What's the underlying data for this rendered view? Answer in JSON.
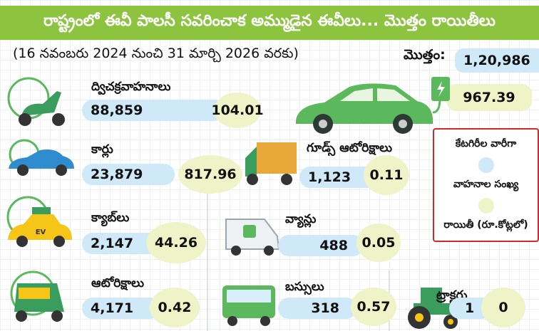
{
  "title": "రాష్ట్రంలో ఈవీ పాలసీ సవరించాక అమ్ముడైన ఈవీలు... మొత్తం రాయితీలు",
  "period": "(16 నవంబరు 2024 నుంచి 31 మార్చి 2026 వరకు)",
  "total": {
    "label": "మొత్తం:",
    "vehicles": "1,20,986",
    "subsidy": "967.39"
  },
  "legend": {
    "heading": "కేటగిరీల వారీగా",
    "vehicles_label": "వాహనాల సంఖ్య",
    "subsidy_label": "రాయితీ (రూ.కోట్లలో)",
    "vehicles_color": "#cfe9f8",
    "subsidy_color": "#eef3c8"
  },
  "categories": [
    {
      "name": "ద్విచక్రవాహనాలు",
      "vehicles": "88,859",
      "subsidy": "104.01",
      "icon": "scooter-icon"
    },
    {
      "name": "కార్లు",
      "vehicles": "23,879",
      "subsidy": "817.96",
      "icon": "car-icon"
    },
    {
      "name": "గూడ్స్ ఆటోరిక్షాలు",
      "vehicles": "1,123",
      "subsidy": "0.11",
      "icon": "goods-auto-icon"
    },
    {
      "name": "క్యాబ్‌లు",
      "vehicles": "2,147",
      "subsidy": "44.26",
      "icon": "cab-icon",
      "badge": "EV"
    },
    {
      "name": "వ్యాన్లు",
      "vehicles": "488",
      "subsidy": "0.05",
      "icon": "van-icon"
    },
    {
      "name": "ఆటోరిక్షాలు",
      "vehicles": "4,171",
      "subsidy": "0.42",
      "icon": "auto-rickshaw-icon"
    },
    {
      "name": "బస్సులు",
      "vehicles": "318",
      "subsidy": "0.57",
      "icon": "bus-icon"
    },
    {
      "name": "ట్రాక్టర్లు",
      "vehicles": "1",
      "subsidy": "0",
      "icon": "tractor-icon"
    }
  ],
  "colors": {
    "title_bg": "#8cc43f",
    "accent_green": "#5bb85c",
    "legend_border": "#d02a2a"
  }
}
